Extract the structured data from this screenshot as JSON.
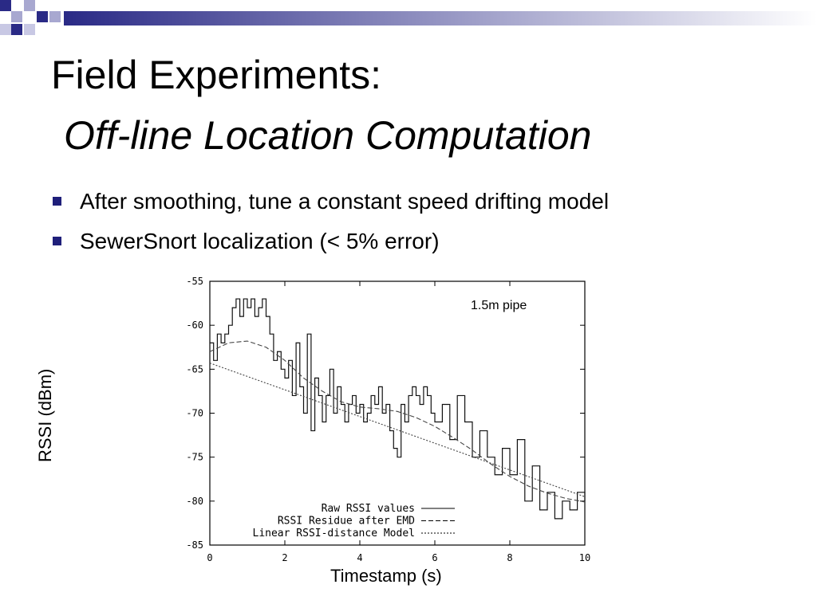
{
  "slide": {
    "title": "Field Experiments:",
    "subtitle": "Off-line Location Computation",
    "bullets": [
      "After smoothing, tune a constant speed drifting model",
      "SewerSnort localization (< 5% error)"
    ],
    "colors": {
      "accent": "#1f1f7a",
      "deco_light": "#9a9ac8"
    }
  },
  "chart_data": {
    "type": "line",
    "xlabel": "Timestamp (s)",
    "ylabel": "RSSI (dBm)",
    "annotation": "1.5m pipe",
    "xlim": [
      0,
      10
    ],
    "ylim": [
      -85,
      -55
    ],
    "xticks": [
      "0",
      "2",
      "4",
      "6",
      "8",
      "10"
    ],
    "yticks": [
      "-55",
      "-60",
      "-65",
      "-70",
      "-75",
      "-80",
      "-85"
    ],
    "legend_position": "bottom-right",
    "grid": false,
    "series": [
      {
        "name": "Raw RSSI values",
        "style": "solid",
        "x": [
          0,
          0.1,
          0.2,
          0.3,
          0.4,
          0.5,
          0.6,
          0.7,
          0.8,
          0.9,
          1.0,
          1.1,
          1.2,
          1.3,
          1.4,
          1.5,
          1.6,
          1.7,
          1.8,
          1.9,
          2.0,
          2.1,
          2.2,
          2.3,
          2.4,
          2.5,
          2.6,
          2.7,
          2.8,
          2.9,
          3.0,
          3.1,
          3.2,
          3.3,
          3.4,
          3.5,
          3.6,
          3.7,
          3.8,
          3.9,
          4.0,
          4.1,
          4.2,
          4.3,
          4.4,
          4.5,
          4.6,
          4.7,
          4.8,
          4.9,
          5.0,
          5.1,
          5.2,
          5.3,
          5.4,
          5.5,
          5.6,
          5.7,
          5.8,
          5.9,
          6.0,
          6.2,
          6.4,
          6.6,
          6.8,
          7.0,
          7.2,
          7.4,
          7.6,
          7.8,
          8.0,
          8.2,
          8.4,
          8.6,
          8.8,
          9.0,
          9.2,
          9.4,
          9.6,
          9.8,
          10.0
        ],
        "y": [
          -62,
          -64,
          -61,
          -62,
          -61,
          -60,
          -58,
          -57,
          -59,
          -57,
          -58,
          -57,
          -59,
          -58,
          -57,
          -59,
          -61,
          -64,
          -63,
          -65,
          -66,
          -64,
          -68,
          -62,
          -67,
          -70,
          -61,
          -72,
          -66,
          -68,
          -71,
          -68,
          -65,
          -70,
          -67,
          -69,
          -71,
          -69,
          -68,
          -70,
          -69,
          -71,
          -70,
          -68,
          -69,
          -67,
          -70,
          -69,
          -72,
          -74,
          -75,
          -69,
          -71,
          -68,
          -67,
          -68,
          -69,
          -67,
          -68,
          -70,
          -71,
          -69,
          -73,
          -68,
          -71,
          -75,
          -72,
          -75,
          -77,
          -74,
          -77,
          -73,
          -80,
          -76,
          -81,
          -79,
          -82,
          -80,
          -81,
          -79,
          -80
        ]
      },
      {
        "name": "RSSI Residue after EMD",
        "style": "dashed",
        "x": [
          0,
          0.5,
          1.0,
          1.5,
          2.0,
          2.5,
          3.0,
          3.5,
          4.0,
          4.5,
          5.0,
          5.5,
          6.0,
          6.5,
          7.0,
          7.5,
          8.0,
          8.5,
          9.0,
          9.5,
          10.0
        ],
        "y": [
          -63,
          -62,
          -61.8,
          -62.5,
          -64,
          -66,
          -67.5,
          -68.7,
          -69.3,
          -69.5,
          -69.8,
          -70.5,
          -71.5,
          -72.8,
          -74.2,
          -75.8,
          -77.2,
          -78.3,
          -79.1,
          -79.7,
          -80.1
        ]
      },
      {
        "name": "Linear RSSI-distance Model",
        "style": "dotted",
        "x": [
          0,
          10
        ],
        "y": [
          -64.3,
          -79.5
        ]
      }
    ]
  }
}
